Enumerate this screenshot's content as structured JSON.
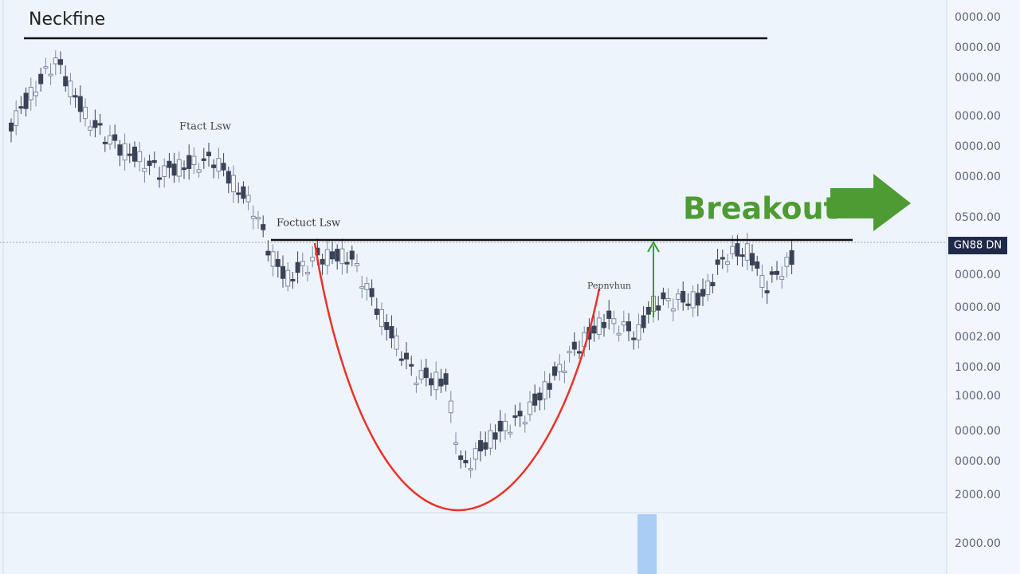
{
  "chart_data": {
    "type": "candlestick",
    "title": "Neckfine",
    "annotations": [
      "Ftact Lsw",
      "Foctuct Lsw",
      "Pepnvhun"
    ],
    "callout": "Breakout",
    "price_tag": "GN88 DN",
    "y_labels": [
      "0000.00",
      "0000.00",
      "0000.00",
      "0000.00",
      "0000.00",
      "0000.00",
      "0500.00",
      "0000.00",
      "0000.00",
      "0002.00",
      "1000.00",
      "1000.00",
      "0000.00",
      "0000.00",
      "2000.00",
      "2000.00"
    ]
  }
}
